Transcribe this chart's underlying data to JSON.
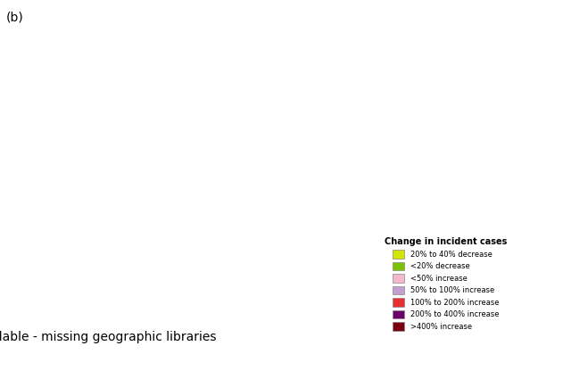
{
  "title": "(b)",
  "legend_title": "Change in incident cases",
  "legend_items": [
    {
      "label": "20% to 40% decrease",
      "color": "#d4e600"
    },
    {
      "label": "<20% decrease",
      "color": "#7dc200"
    },
    {
      "label": "<50% increase",
      "color": "#f4b8c8"
    },
    {
      "label": "50% to 100% increase",
      "color": "#c4a0d0"
    },
    {
      "label": "100% to 200% increase",
      "color": "#e83030"
    },
    {
      "label": "200% to 400% increase",
      "color": "#6a006a"
    },
    {
      "label": ">400% increase",
      "color": "#7a0010"
    }
  ],
  "country_colors": {
    "Afghanistan": "#e83030",
    "Albania": "#f4b8c8",
    "Algeria": "#f4b8c8",
    "Angola": "#e83030",
    "Argentina": "#c4a0d0",
    "Armenia": "#f4b8c8",
    "Australia": "#f4b8c8",
    "Austria": "#f4b8c8",
    "Azerbaijan": "#c4a0d0",
    "Bahrain": "#c4a0d0",
    "Bangladesh": "#e83030",
    "Belarus": "#7dc200",
    "Belgium": "#f4b8c8",
    "Belize": "#f4b8c8",
    "Benin": "#e83030",
    "Bhutan": "#e83030",
    "Bolivia": "#c4a0d0",
    "Bosnia and Herz.": "#f4b8c8",
    "Botswana": "#e83030",
    "Brazil": "#c4a0d0",
    "Brunei": "#c4a0d0",
    "Bulgaria": "#f4b8c8",
    "Burkina Faso": "#e83030",
    "Burundi": "#e83030",
    "Cambodia": "#e83030",
    "Cameroon": "#e83030",
    "Canada": "#f4b8c8",
    "Central African Rep.": "#e83030",
    "Chad": "#e83030",
    "Chile": "#f4b8c8",
    "China": "#c4a0d0",
    "Colombia": "#c4a0d0",
    "Congo": "#e83030",
    "Dem. Rep. Congo": "#e83030",
    "Costa Rica": "#c4a0d0",
    "Croatia": "#f4b8c8",
    "Cuba": "#f4b8c8",
    "Cyprus": "#f4b8c8",
    "Czech Rep.": "#f4b8c8",
    "Denmark": "#f4b8c8",
    "Djibouti": "#e83030",
    "Dominican Rep.": "#c4a0d0",
    "Ecuador": "#c4a0d0",
    "Egypt": "#e83030",
    "El Salvador": "#c4a0d0",
    "Eq. Guinea": "#e83030",
    "Eritrea": "#e83030",
    "Estonia": "#7dc200",
    "Ethiopia": "#e83030",
    "Finland": "#7dc200",
    "France": "#f4b8c8",
    "Gabon": "#e83030",
    "Gambia": "#e83030",
    "Georgia": "#d4e600",
    "Germany": "#f4b8c8",
    "Ghana": "#e83030",
    "Greece": "#f4b8c8",
    "Guatemala": "#c4a0d0",
    "Guinea": "#e83030",
    "Guinea-Bissau": "#e83030",
    "Haiti": "#e83030",
    "Honduras": "#c4a0d0",
    "Hungary": "#f4b8c8",
    "Iceland": "#7dc200",
    "India": "#e83030",
    "Indonesia": "#c4a0d0",
    "Iran": "#c4a0d0",
    "Iraq": "#e83030",
    "Ireland": "#f4b8c8",
    "Israel": "#f4b8c8",
    "Italy": "#f4b8c8",
    "Ivory Coast": "#e83030",
    "Jamaica": "#c4a0d0",
    "Japan": "#7dc200",
    "Jordan": "#e83030",
    "Kazakhstan": "#7dc200",
    "Kenya": "#e83030",
    "Kosovo": "#f4b8c8",
    "Kuwait": "#e83030",
    "Kyrgyzstan": "#c4a0d0",
    "Laos": "#e83030",
    "Latvia": "#7dc200",
    "Lebanon": "#e83030",
    "Lesotho": "#e83030",
    "Liberia": "#e83030",
    "Libya": "#e83030",
    "Lithuania": "#7dc200",
    "Luxembourg": "#f4b8c8",
    "Macedonia": "#f4b8c8",
    "Madagascar": "#e83030",
    "Malawi": "#e83030",
    "Malaysia": "#c4a0d0",
    "Mali": "#e83030",
    "Mauritania": "#e83030",
    "Mexico": "#c4a0d0",
    "Moldova": "#f4b8c8",
    "Mongolia": "#7dc200",
    "Montenegro": "#f4b8c8",
    "Morocco": "#f4b8c8",
    "Mozambique": "#e83030",
    "Myanmar": "#e83030",
    "Namibia": "#e83030",
    "Nepal": "#e83030",
    "Netherlands": "#f4b8c8",
    "New Zealand": "#f4b8c8",
    "Nicaragua": "#c4a0d0",
    "Niger": "#e83030",
    "Nigeria": "#e83030",
    "Norway": "#7dc200",
    "Oman": "#e83030",
    "Pakistan": "#e83030",
    "Panama": "#c4a0d0",
    "Papua New Guinea": "#c4a0d0",
    "Paraguay": "#c4a0d0",
    "Peru": "#c4a0d0",
    "Philippines": "#e83030",
    "Poland": "#f4b8c8",
    "Portugal": "#f4b8c8",
    "Qatar": "#7a0010",
    "Romania": "#f4b8c8",
    "Russia": "#7dc200",
    "Rwanda": "#e83030",
    "Saudi Arabia": "#e83030",
    "Senegal": "#e83030",
    "Serbia": "#f4b8c8",
    "Sierra Leone": "#e83030",
    "Slovakia": "#f4b8c8",
    "Slovenia": "#f4b8c8",
    "Somalia": "#e83030",
    "South Africa": "#e83030",
    "South Korea": "#7dc200",
    "S. Sudan": "#e83030",
    "Spain": "#f4b8c8",
    "Sri Lanka": "#e83030",
    "Sudan": "#e83030",
    "Suriname": "#c4a0d0",
    "Swaziland": "#e83030",
    "Sweden": "#7dc200",
    "Switzerland": "#f4b8c8",
    "Syria": "#e83030",
    "Taiwan": "#7dc200",
    "Tajikistan": "#c4a0d0",
    "Tanzania": "#e83030",
    "Thailand": "#c4a0d0",
    "Timor-Leste": "#e83030",
    "Togo": "#e83030",
    "Trinidad and Tobago": "#c4a0d0",
    "Tunisia": "#f4b8c8",
    "Turkey": "#c4a0d0",
    "Turkmenistan": "#c4a0d0",
    "Uganda": "#e83030",
    "Ukraine": "#7dc200",
    "United Arab Emirates": "#7a0010",
    "United Kingdom": "#f4b8c8",
    "United States": "#f4b8c8",
    "Uruguay": "#c4a0d0",
    "Uzbekistan": "#c4a0d0",
    "Venezuela": "#c4a0d0",
    "Vietnam": "#e83030",
    "Yemen": "#e83030",
    "Zambia": "#e83030",
    "Zimbabwe": "#e83030"
  },
  "background_color": "#ffffff"
}
